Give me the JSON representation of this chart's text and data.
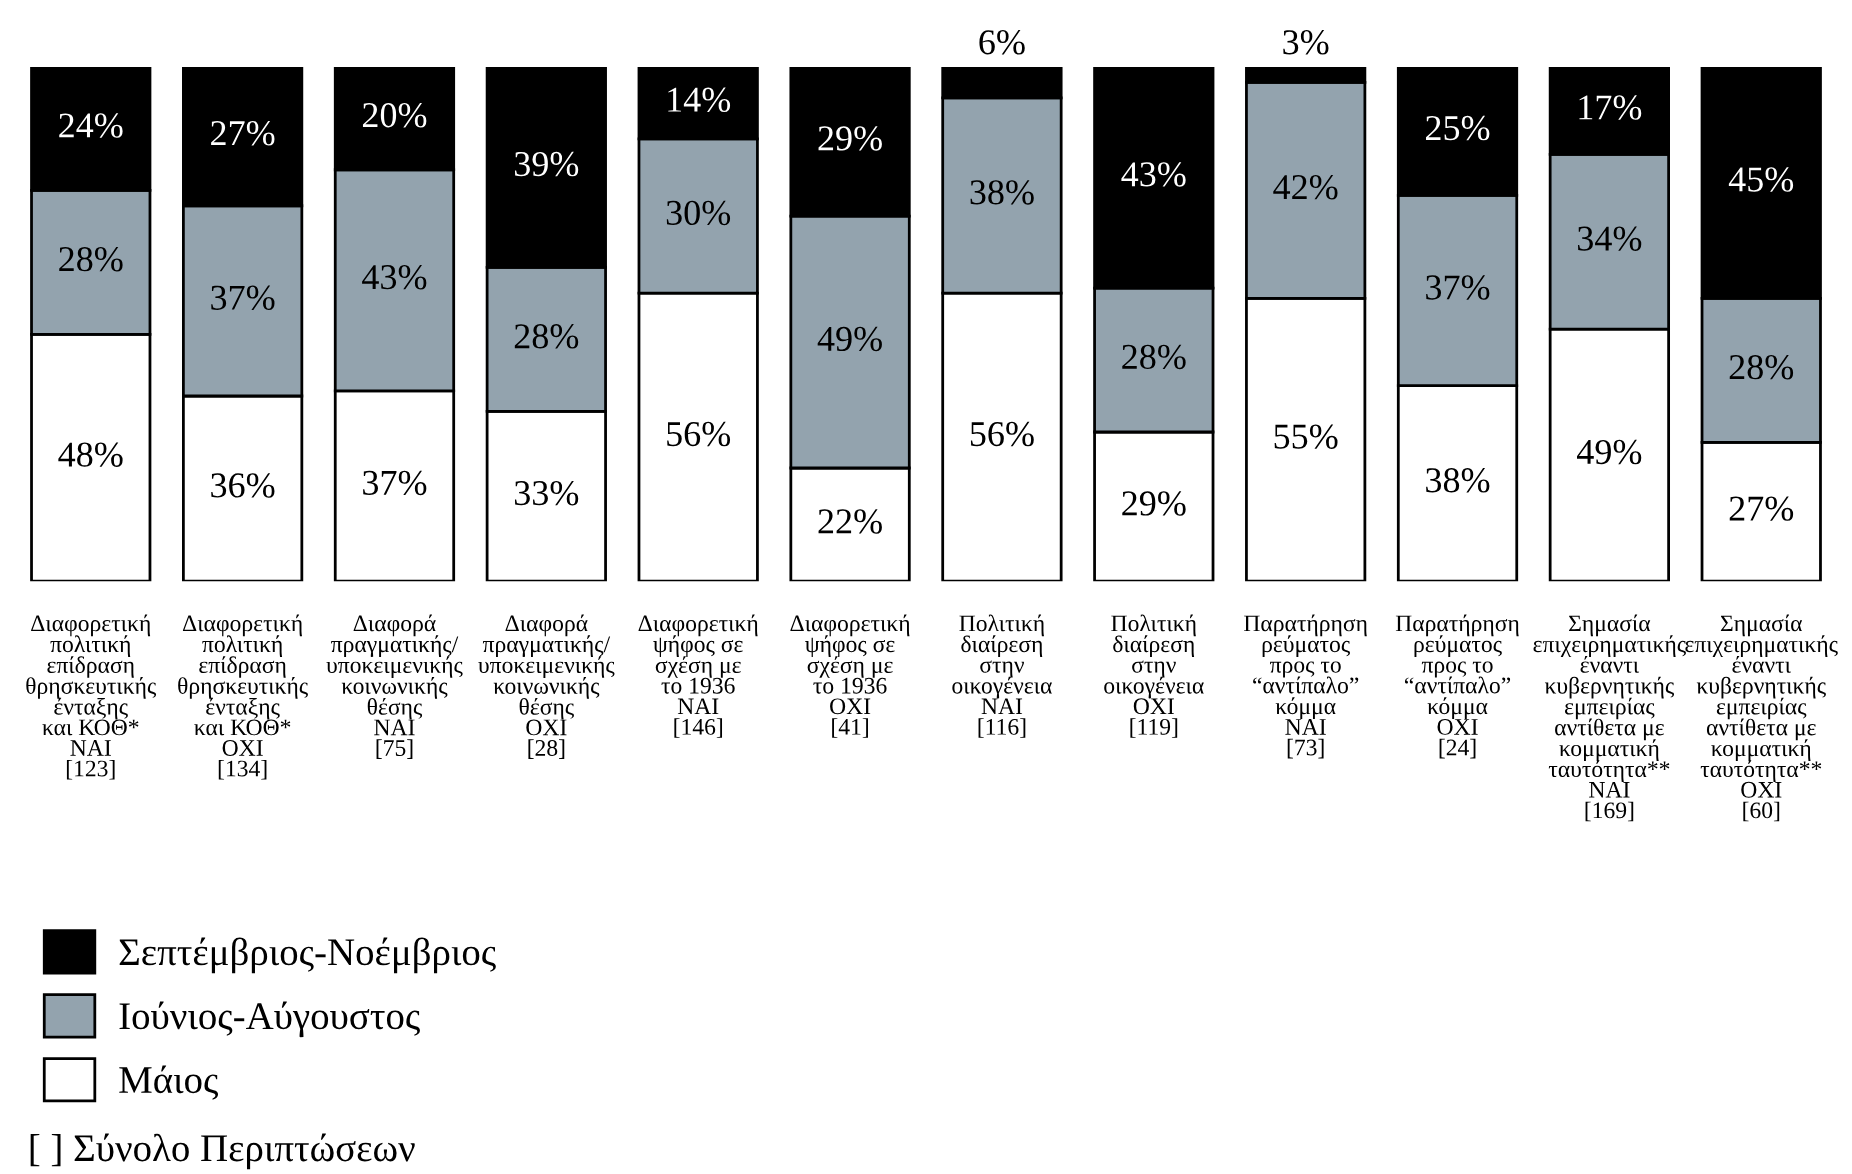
{
  "chart_data": {
    "type": "bar",
    "stacked": true,
    "legend": "bottom left",
    "grid": false,
    "categories": [
      "Διαφορετική\nπολιτική\nεπίδραση\nθρησκευτικής\nένταξης\nκαι ΚΟΘ*\nΝΑΙ\n[123]",
      "Διαφορετική\nπολιτική\nεπίδραση\nθρησκευτικής\nένταξης\nκαι ΚΟΘ*\nΟΧΙ\n[134]",
      "Διαφορά\nπραγματικής/\nυποκειμενικής\nκοινωνικής\nθέσης\nΝΑΙ\n[75]",
      "Διαφορά\nπραγματικής/\nυποκειμενικής\nκοινωνικής\nθέσης\nΟΧΙ\n[28]",
      "Διαφορετική\nψήφος σε\nσχέση με\nτο 1936\nΝΑΙ\n[146]",
      "Διαφορετική\nψήφος σε\nσχέση με\nτο 1936\nΟΧΙ\n[41]",
      "Πολιτική\nδιαίρεση\nστην\nοικογένεια\nΝΑΙ\n[116]",
      "Πολιτική\nδιαίρεση\nστην\nοικογένεια\nΟΧΙ\n[119]",
      "Παρατήρηση\nρεύματος\nπρος το\n“αντίπαλο”\nκόμμα\nΝΑΙ\n[73]",
      "Παρατήρηση\nρεύματος\nπρος το\n“αντίπαλο”\nκόμμα\nΟΧΙ\n[24]",
      "Σημασία\nεπιχειρηματικής\nέναντι\nκυβερνητικής\nεμπειρίας\nαντίθετα με\nκομματική\nταυτότητα**\nΝΑΙ\n[169]",
      "Σημασία\nεπιχειρηματικής\nέναντι\nκυβερνητικής\nεμπειρίας\nαντίθετα με\nκομματική\nταυτότητα**\nΟΧΙ\n[60]"
    ],
    "series": [
      {
        "name": "Μάιος",
        "color": "#ffffff",
        "values": [
          48,
          36,
          37,
          33,
          56,
          22,
          56,
          29,
          55,
          38,
          49,
          27
        ],
        "value_labels": [
          "48%",
          "36%",
          "37%",
          "33%",
          "56%",
          "22%",
          "56%",
          "29%",
          "55%",
          "38%",
          "49%",
          "27%"
        ]
      },
      {
        "name": "Ιούνιος-Αύγουστος",
        "color": "#93a3ae",
        "values": [
          28,
          37,
          43,
          28,
          30,
          49,
          38,
          28,
          42,
          37,
          34,
          28
        ],
        "value_labels": [
          "28%",
          "37%",
          "43%",
          "28%",
          "30%",
          "49%",
          "38%",
          "28%",
          "42%",
          "37%",
          "34%",
          "28%"
        ]
      },
      {
        "name": "Σεπτέμβριος-Νοέμβριος",
        "color": "#000000",
        "values": [
          24,
          27,
          20,
          39,
          14,
          29,
          6,
          43,
          3,
          25,
          17,
          45
        ],
        "value_labels": [
          "24%",
          "27%",
          "20%",
          "39%",
          "14%",
          "29%",
          "6%",
          "43%",
          "3%",
          "25%",
          "17%",
          "45%"
        ]
      }
    ],
    "annotations": [
      "[ ] Σύνολο Περιπτώσεων"
    ]
  }
}
